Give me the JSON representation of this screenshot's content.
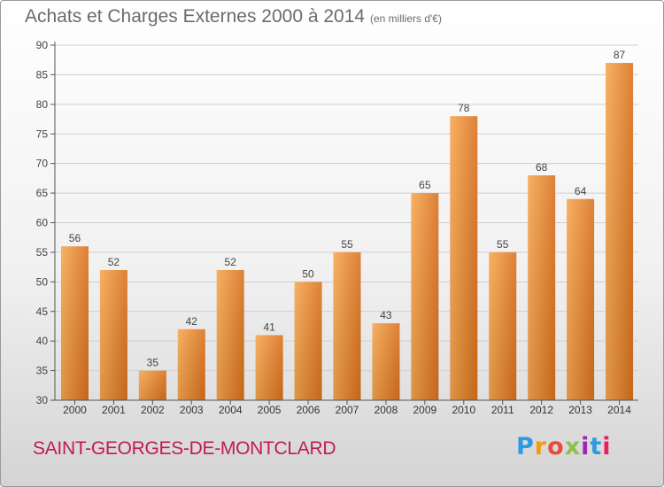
{
  "title": "Achats et Charges Externes 2000 à 2014",
  "unit": "(en milliers d'€)",
  "commune": "SAINT-GEORGES-DE-MONTCLARD",
  "logo": {
    "text": "Proxiti",
    "colors": [
      "#2e9be0",
      "#f39c12",
      "#e74c3c",
      "#8bc34a",
      "#9c27b0",
      "#2e9be0",
      "#e91e63"
    ]
  },
  "colors": {
    "bar_light": "#f7a64f",
    "bar_dark": "#d9711d",
    "title": "#6b6b6b",
    "commune": "#c2185b",
    "grid": "#cfcfcf"
  },
  "chart_data": {
    "type": "bar",
    "categories": [
      "2000",
      "2001",
      "2002",
      "2003",
      "2004",
      "2005",
      "2006",
      "2007",
      "2008",
      "2009",
      "2010",
      "2011",
      "2012",
      "2013",
      "2014"
    ],
    "values": [
      56,
      52,
      35,
      42,
      52,
      41,
      50,
      55,
      43,
      65,
      78,
      55,
      68,
      64,
      87
    ],
    "ylim": [
      30,
      90
    ],
    "yticks": [
      30,
      35,
      40,
      45,
      50,
      55,
      60,
      65,
      70,
      75,
      80,
      85,
      90
    ],
    "grid": true,
    "xlabel": "",
    "ylabel": ""
  }
}
